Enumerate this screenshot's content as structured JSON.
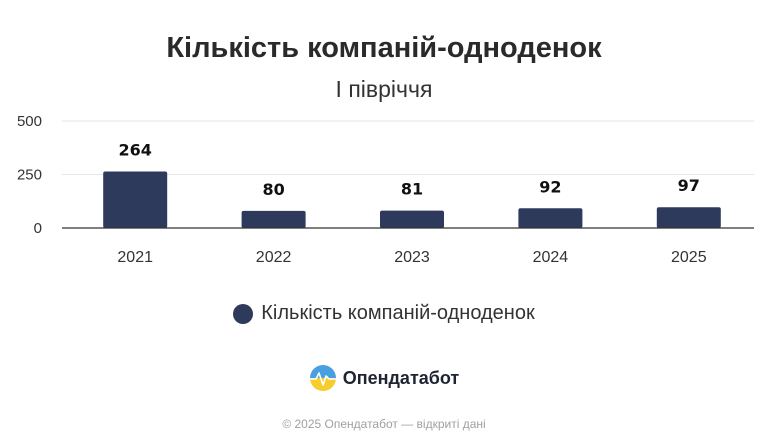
{
  "title": "Кількість компаній-одноденок",
  "subtitle": "І півріччя",
  "colors": {
    "bar": "#2d3a5c",
    "grid": "#e6e6e6",
    "axis": "#333333",
    "text": "#333333"
  },
  "chart_data": {
    "type": "bar",
    "categories": [
      "2021",
      "2022",
      "2023",
      "2024",
      "2025"
    ],
    "series": [
      {
        "name": "Кількість компаній-одноденок",
        "values": [
          264,
          80,
          81,
          92,
          97
        ]
      }
    ],
    "ylim": [
      0,
      500
    ],
    "yticks": [
      0,
      250,
      500
    ],
    "grid": true,
    "data_labels": true,
    "legend": "bottom-center"
  },
  "legend": {
    "label": "Кількість компаній-одноденок"
  },
  "brand": {
    "name": "Опендатабот",
    "icon": "opendatabot-logo-icon"
  },
  "footer": {
    "text": "© 2025 Опендатабот — відкриті дані"
  }
}
